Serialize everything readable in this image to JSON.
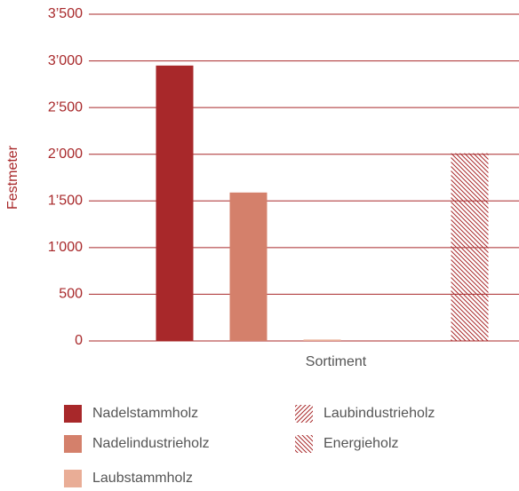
{
  "chart_data": {
    "type": "bar",
    "categories": [
      null
    ],
    "x_label": "Sortiment",
    "y_label": "Festmeter",
    "series": [
      {
        "name": "Nadelstammholz",
        "color": "#a8282a",
        "values": [
          2950
        ]
      },
      {
        "name": "Nadelindustrieholz",
        "color": "#d4806b",
        "values": [
          1590
        ]
      },
      {
        "name": "Laubstammholz",
        "color": "#e9ad96",
        "values": [
          15
        ]
      },
      {
        "name": "Laubindustrieholz",
        "color": "#a8282a",
        "hatch": "/",
        "values": [
          0
        ]
      },
      {
        "name": "Energieholz",
        "color": "#a8282a",
        "hatch": "\\",
        "values": [
          2010
        ]
      }
    ],
    "ylim": [
      0,
      3500
    ],
    "yticks": [
      0,
      500,
      {
        "value": 1000,
        "label": "1’000"
      },
      {
        "value": 1500,
        "label": "1’500"
      },
      {
        "value": 2000,
        "label": "2’000"
      },
      {
        "value": 2500,
        "label": "2’500"
      },
      {
        "value": 3000,
        "label": "3’000"
      },
      {
        "value": 3500,
        "label": "3’500"
      }
    ],
    "grid": true,
    "axis_color": "#a8282a"
  }
}
